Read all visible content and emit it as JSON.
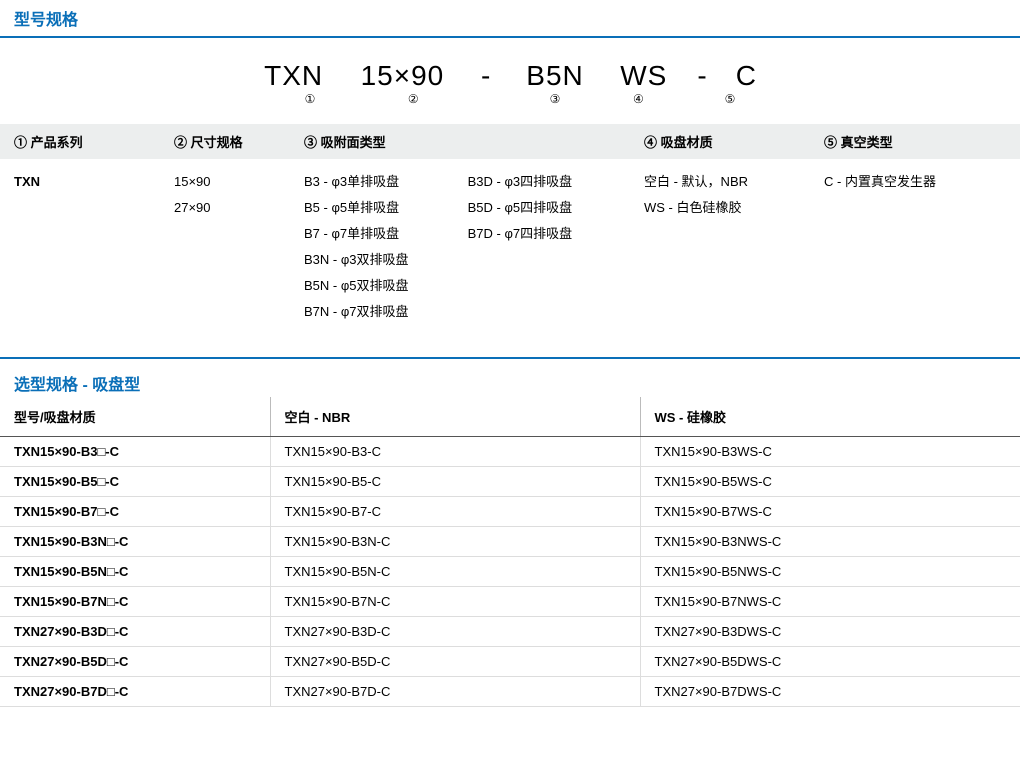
{
  "colors": {
    "heading": "#0a6fb8",
    "headerBg": "#eceeee",
    "rowBorder": "#dddddd",
    "headerBorder": "#555555",
    "text": "#000000",
    "bg": "#ffffff"
  },
  "section1": {
    "title": "型号规格",
    "model": {
      "p1": "TXN",
      "p2": "15×90",
      "dash1": "-",
      "p3": "B5N",
      "p4": "WS",
      "dash2": "-",
      "p5": "C",
      "m1": "①",
      "m2": "②",
      "m3": "③",
      "m4": "④",
      "m5": "⑤"
    },
    "headers": {
      "h1": "① 产品系列",
      "h2": "② 尺寸规格",
      "h3": "③ 吸附面类型",
      "h4": "④ 吸盘材质",
      "h5": "⑤ 真空类型"
    },
    "col1": {
      "v1": "TXN"
    },
    "col2": {
      "v1": "15×90",
      "v2": "27×90"
    },
    "col3a": {
      "v1": "B3   - φ3单排吸盘",
      "v2": "B5   - φ5单排吸盘",
      "v3": "B7   - φ7单排吸盘",
      "v4": "B3N - φ3双排吸盘",
      "v5": "B5N - φ5双排吸盘",
      "v6": "B7N - φ7双排吸盘"
    },
    "col3b": {
      "v1": "B3D - φ3四排吸盘",
      "v2": "B5D - φ5四排吸盘",
      "v3": "B7D - φ7四排吸盘"
    },
    "col4": {
      "v1": "空白 - 默认，NBR",
      "v2": "WS  - 白色硅橡胶"
    },
    "col5": {
      "v1": "C - 内置真空发生器"
    }
  },
  "section2": {
    "title": "选型规格 - 吸盘型",
    "headers": {
      "h1": "型号/吸盘材质",
      "h2": "空白 - NBR",
      "h3": "WS - 硅橡胶"
    },
    "rows": [
      {
        "c1": "TXN15×90-B3□-C",
        "c2": "TXN15×90-B3-C",
        "c3": "TXN15×90-B3WS-C"
      },
      {
        "c1": "TXN15×90-B5□-C",
        "c2": "TXN15×90-B5-C",
        "c3": "TXN15×90-B5WS-C"
      },
      {
        "c1": "TXN15×90-B7□-C",
        "c2": "TXN15×90-B7-C",
        "c3": "TXN15×90-B7WS-C"
      },
      {
        "c1": "TXN15×90-B3N□-C",
        "c2": "TXN15×90-B3N-C",
        "c3": "TXN15×90-B3NWS-C"
      },
      {
        "c1": "TXN15×90-B5N□-C",
        "c2": "TXN15×90-B5N-C",
        "c3": "TXN15×90-B5NWS-C"
      },
      {
        "c1": "TXN15×90-B7N□-C",
        "c2": "TXN15×90-B7N-C",
        "c3": "TXN15×90-B7NWS-C"
      },
      {
        "c1": "TXN27×90-B3D□-C",
        "c2": "TXN27×90-B3D-C",
        "c3": "TXN27×90-B3DWS-C"
      },
      {
        "c1": "TXN27×90-B5D□-C",
        "c2": "TXN27×90-B5D-C",
        "c3": "TXN27×90-B5DWS-C"
      },
      {
        "c1": "TXN27×90-B7D□-C",
        "c2": "TXN27×90-B7D-C",
        "c3": "TXN27×90-B7DWS-C"
      }
    ]
  }
}
